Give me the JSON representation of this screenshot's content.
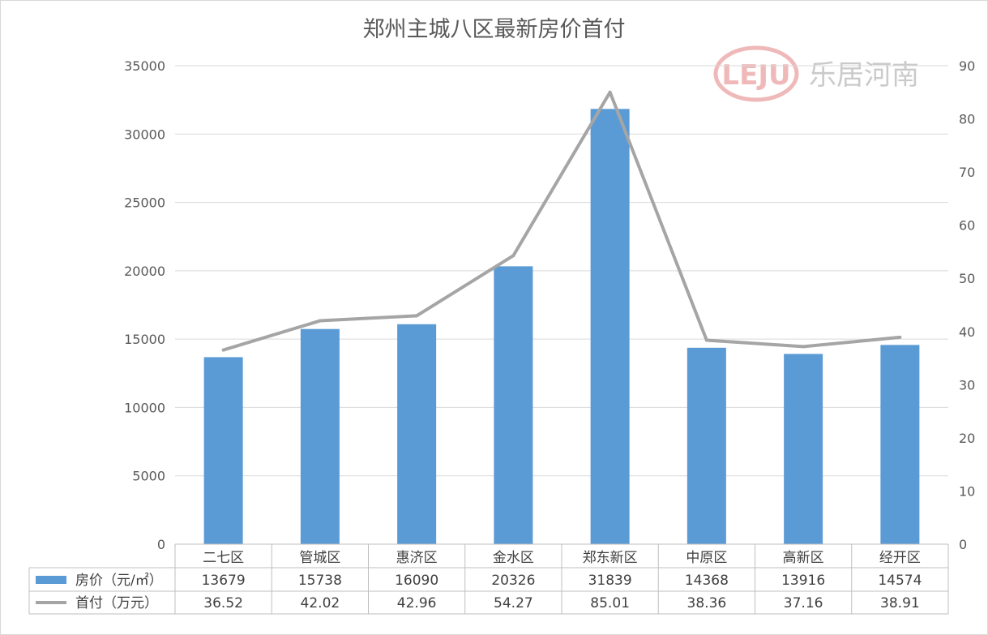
{
  "chart_data": {
    "type": "bar",
    "title": "郑州主城八区最新房价首付",
    "categories": [
      "二七区",
      "管城区",
      "惠济区",
      "金水区",
      "郑东新区",
      "中原区",
      "高新区",
      "经开区"
    ],
    "series": [
      {
        "name": "房价（元/㎡）",
        "type": "bar",
        "axis": "left",
        "color": "#5b9bd5",
        "values": [
          13679,
          15738,
          16090,
          20326,
          31839,
          14368,
          13916,
          14574
        ]
      },
      {
        "name": "首付（万元）",
        "type": "line",
        "axis": "right",
        "color": "#a5a5a5",
        "values": [
          36.52,
          42.02,
          42.96,
          54.27,
          85.01,
          38.36,
          37.16,
          38.91
        ]
      }
    ],
    "y_left": {
      "min": 0,
      "max": 35000,
      "ticks": [
        "0",
        "5000",
        "10000",
        "15000",
        "20000",
        "25000",
        "30000",
        "35000"
      ]
    },
    "y_right": {
      "min": 0,
      "max": 90,
      "ticks": [
        "0",
        "10",
        "20",
        "30",
        "40",
        "50",
        "60",
        "70",
        "80",
        "90"
      ]
    },
    "table_values": [
      [
        "13679",
        "15738",
        "16090",
        "20326",
        "31839",
        "14368",
        "13916",
        "14574"
      ],
      [
        "36.52",
        "42.02",
        "42.96",
        "54.27",
        "85.01",
        "38.36",
        "37.16",
        "38.91"
      ]
    ],
    "grid": true,
    "legend": "data-table"
  },
  "watermark": {
    "logo": "LEJU",
    "text": "乐居河南"
  }
}
